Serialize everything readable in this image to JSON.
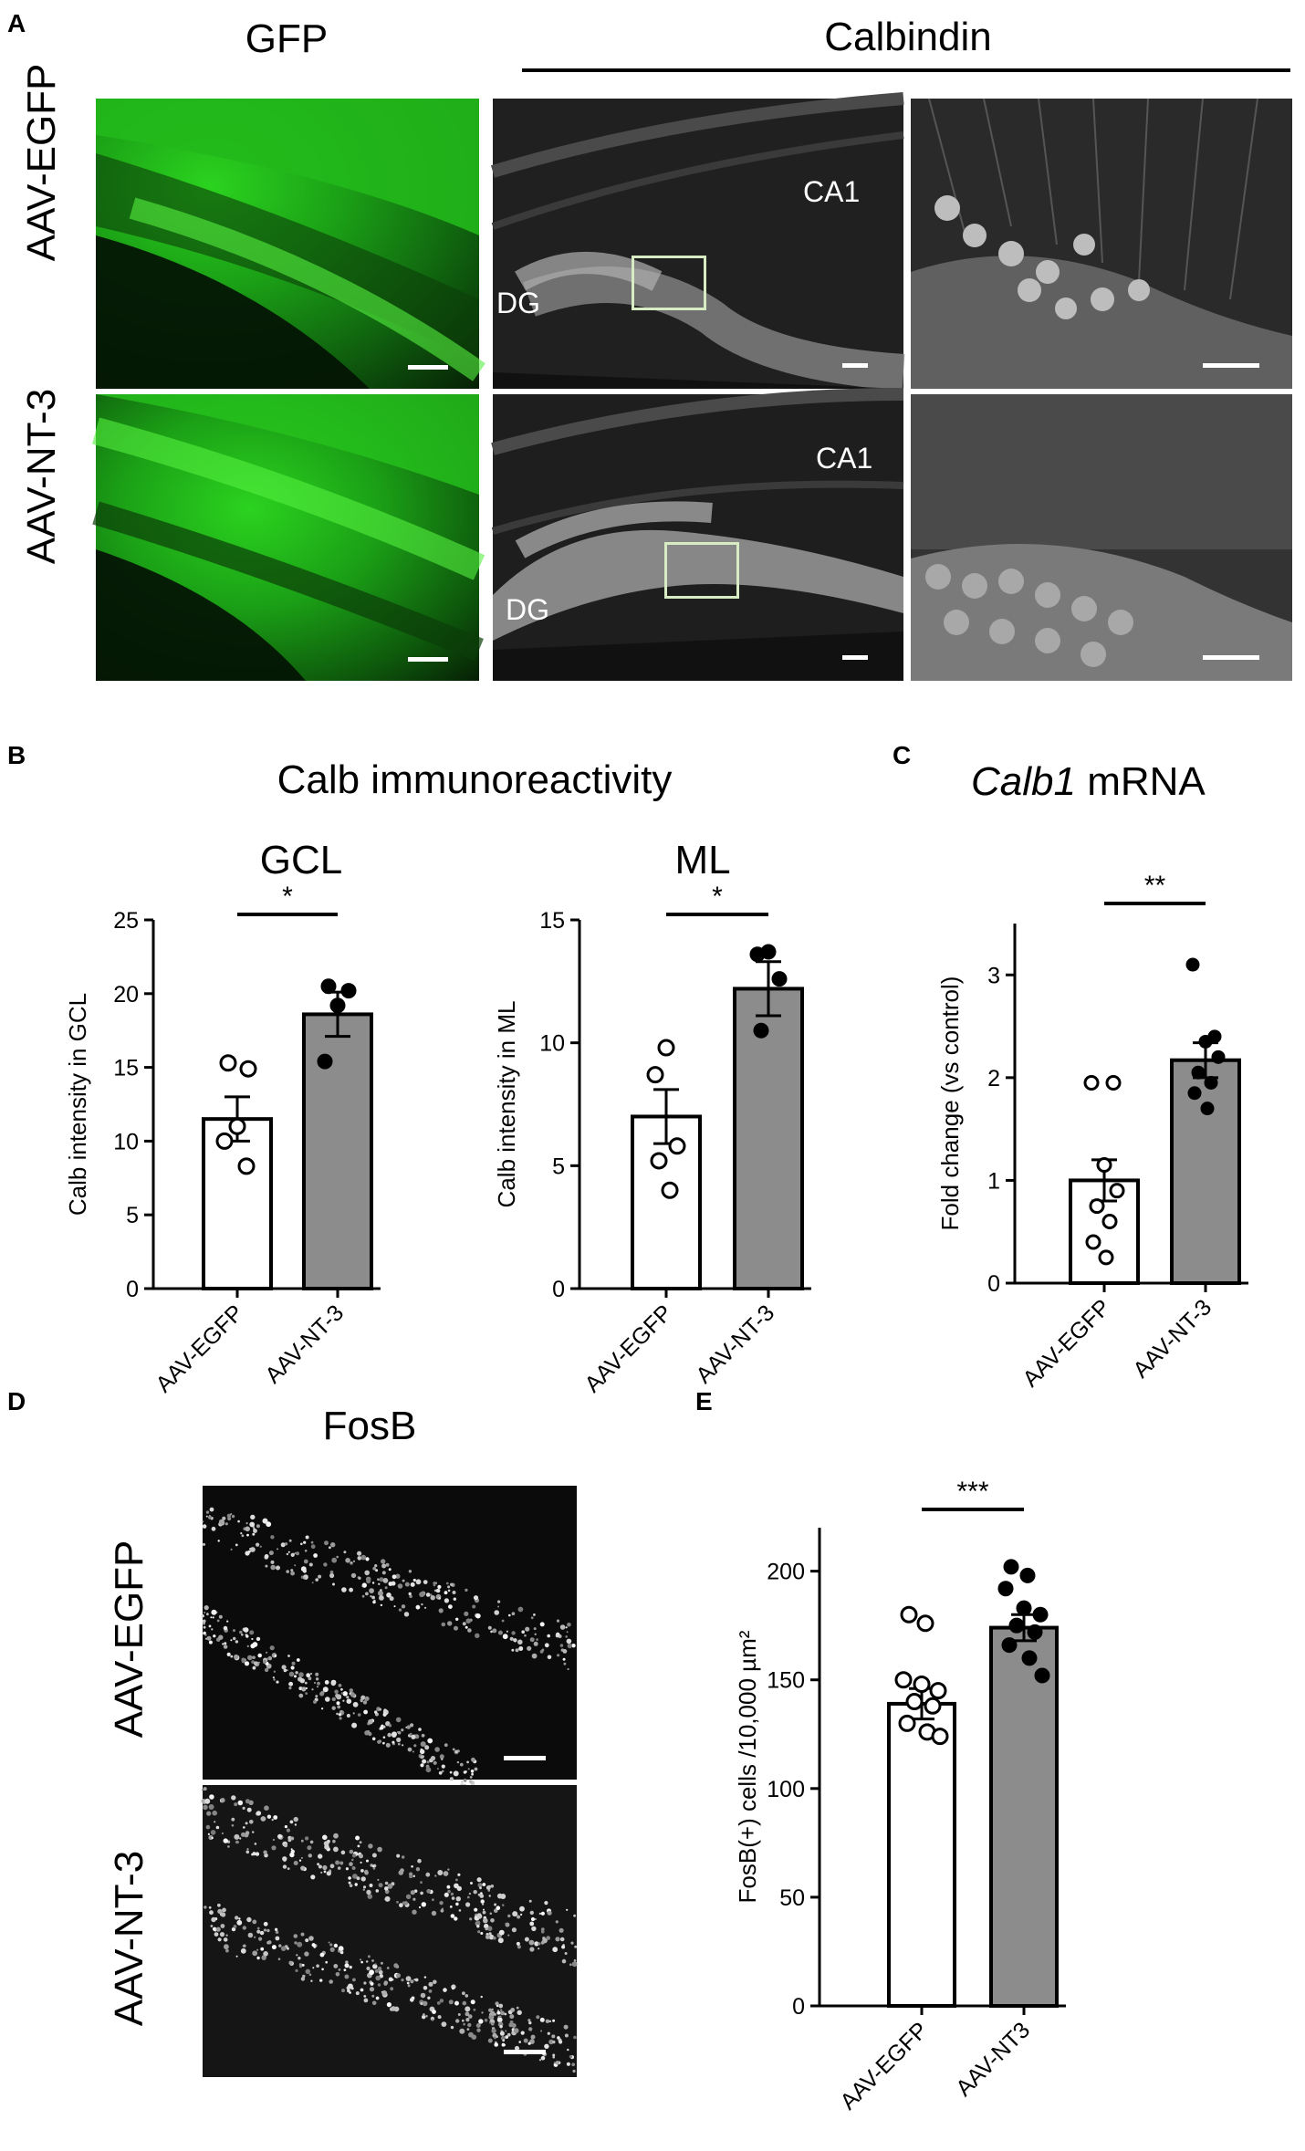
{
  "panel_A": {
    "letter": "A",
    "col_gfp": "GFP",
    "col_calbindin": "Calbindin",
    "row_egfp": "AAV-EGFP",
    "row_nt3": "AAV-NT-3",
    "lbl_ca1_top": "CA1",
    "lbl_dg_top": "DG",
    "lbl_ca1_bot": "CA1",
    "lbl_dg_bot": "DG",
    "colors": {
      "gfp": "#27c21f",
      "roi_box": "#d8ecc4"
    }
  },
  "panel_B": {
    "letter": "B",
    "title": "Calb immunoreactivity"
  },
  "panel_C": {
    "letter": "C",
    "title_italic": "Calb1",
    "title_rest": " mRNA"
  },
  "panel_D": {
    "letter": "D",
    "title": "FosB",
    "row_egfp": "AAV-EGFP",
    "row_nt3": "AAV-NT-3"
  },
  "panel_E": {
    "letter": "E"
  },
  "chart_data": [
    {
      "id": "B_GCL",
      "type": "bar",
      "title": "GCL",
      "ylabel": "Calb intensity in GCL",
      "categories": [
        "AAV-EGFP",
        "AAV-NT-3"
      ],
      "values": [
        11.5,
        18.6
      ],
      "sem": [
        1.5,
        1.5
      ],
      "ylim": [
        0,
        25
      ],
      "yticks": [
        "0",
        "5",
        "10",
        "15",
        "20",
        "25"
      ],
      "significance": "*",
      "bar_colors": [
        "#ffffff",
        "#8c8c8c"
      ],
      "points": [
        [
          15.3,
          14.9,
          11.0,
          10.0,
          8.3
        ],
        [
          20.5,
          20.2,
          19.2,
          15.4
        ]
      ],
      "marker_fill": [
        "open",
        "filled"
      ]
    },
    {
      "id": "B_ML",
      "type": "bar",
      "title": "ML",
      "ylabel": "Calb intensity in ML",
      "categories": [
        "AAV-EGFP",
        "AAV-NT-3"
      ],
      "values": [
        7.0,
        12.2
      ],
      "sem": [
        1.1,
        1.1
      ],
      "ylim": [
        0,
        15
      ],
      "yticks": [
        "0",
        "5",
        "10",
        "15"
      ],
      "significance": "*",
      "bar_colors": [
        "#ffffff",
        "#8c8c8c"
      ],
      "points": [
        [
          9.8,
          8.7,
          5.8,
          5.2,
          4.0
        ],
        [
          13.7,
          13.6,
          12.6,
          10.5
        ]
      ],
      "marker_fill": [
        "open",
        "filled"
      ]
    },
    {
      "id": "C",
      "type": "bar",
      "ylabel": "Fold change (vs control)",
      "categories": [
        "AAV-EGFP",
        "AAV-NT-3"
      ],
      "values": [
        1.0,
        2.17
      ],
      "sem": [
        0.2,
        0.17
      ],
      "ylim": [
        0,
        3.5
      ],
      "yticks": [
        "0",
        "1",
        "2",
        "3"
      ],
      "significance": "**",
      "bar_colors": [
        "#ffffff",
        "#8c8c8c"
      ],
      "points": [
        [
          1.95,
          1.95,
          1.15,
          0.9,
          0.75,
          0.6,
          0.4,
          0.25
        ],
        [
          3.1,
          2.4,
          2.35,
          2.2,
          2.05,
          1.95,
          1.85,
          1.7
        ]
      ],
      "marker_fill": [
        "open",
        "filled"
      ]
    },
    {
      "id": "E",
      "type": "bar",
      "ylabel": "FosB(+) cells /10,000 µm²",
      "categories": [
        "AAV-EGFP",
        "AAV-NT3"
      ],
      "values": [
        139,
        174
      ],
      "sem": [
        7,
        6
      ],
      "ylim": [
        0,
        220
      ],
      "yticks": [
        "0",
        "50",
        "100",
        "150",
        "200"
      ],
      "significance": "***",
      "bar_colors": [
        "#ffffff",
        "#8c8c8c"
      ],
      "points": [
        [
          180,
          176,
          150,
          148,
          145,
          140,
          138,
          130,
          126,
          124
        ],
        [
          202,
          198,
          192,
          183,
          180,
          175,
          172,
          166,
          160,
          152
        ]
      ],
      "marker_fill": [
        "open",
        "filled"
      ]
    }
  ]
}
